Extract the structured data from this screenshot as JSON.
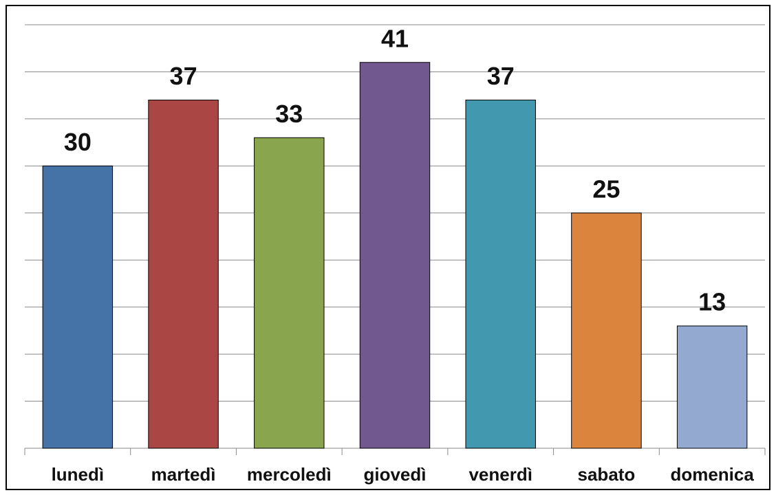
{
  "chart_data": {
    "type": "bar",
    "categories": [
      "lunedì",
      "martedì",
      "mercoledì",
      "giovedì",
      "venerdì",
      "sabato",
      "domenica"
    ],
    "values": [
      30,
      37,
      33,
      41,
      37,
      25,
      13
    ],
    "colors": [
      "#4572a7",
      "#aa4643",
      "#89a54e",
      "#71588f",
      "#4198af",
      "#db843d",
      "#93a9cf"
    ],
    "ylim": [
      0,
      45
    ],
    "yticks": [
      0,
      5,
      10,
      15,
      20,
      25,
      30,
      35,
      40,
      45
    ],
    "grid": true
  }
}
